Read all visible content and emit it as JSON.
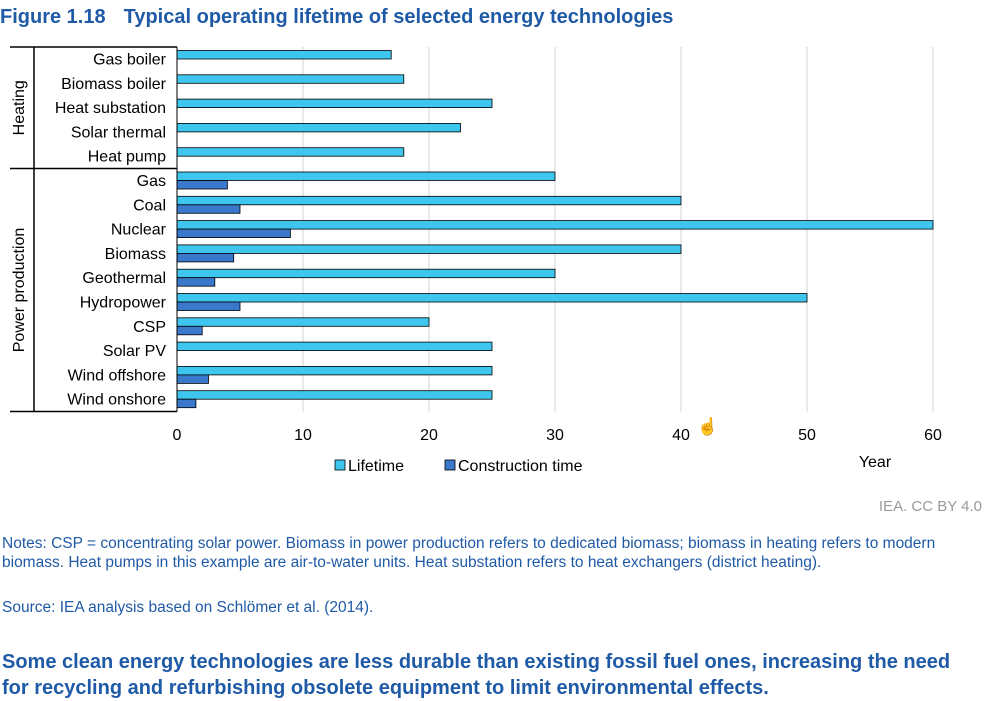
{
  "figure": {
    "number": "Figure 1.18",
    "title": "Typical operating lifetime of selected energy technologies",
    "credit": "IEA. CC BY 4.0",
    "notes": "Notes: CSP = concentrating solar power. Biomass in power production refers to dedicated biomass; biomass in heating refers to modern biomass. Heat pumps in this example are air-to-water units. Heat substation refers to heat exchangers (district heating).",
    "source": "Source: IEA analysis based on Schlömer et al. (2014).",
    "takeaway": "Some clean energy technologies are less durable than existing fossil fuel ones, increasing the need for recycling and refurbishing obsolete equipment to limit environmental effects."
  },
  "chart_data": {
    "type": "bar",
    "orientation": "horizontal",
    "categories": [
      "Gas boiler",
      "Biomass boiler",
      "Heat substation",
      "Solar thermal",
      "Heat pump",
      "Gas",
      "Coal",
      "Nuclear",
      "Biomass",
      "Geothermal",
      "Hydropower",
      "CSP",
      "Solar PV",
      "Wind offshore",
      "Wind onshore"
    ],
    "groups": [
      {
        "label": "Heating",
        "count": 5
      },
      {
        "label": "Power production",
        "count": 10
      }
    ],
    "series": [
      {
        "name": "Lifetime",
        "color": "#3fc6ee",
        "values": [
          17,
          18,
          25,
          22.5,
          18,
          30,
          40,
          60,
          40,
          30,
          50,
          20,
          25,
          25,
          25
        ]
      },
      {
        "name": "Construction time",
        "color": "#3a78cc",
        "values": [
          null,
          null,
          null,
          null,
          null,
          4,
          5,
          9,
          4.5,
          3,
          5,
          2,
          null,
          2.5,
          1.5
        ]
      }
    ],
    "xlabel": "Year",
    "xlim": [
      0,
      60
    ],
    "xticks": [
      0,
      10,
      20,
      30,
      40,
      50,
      60
    ],
    "grid": "vertical",
    "legend_position": "bottom"
  }
}
